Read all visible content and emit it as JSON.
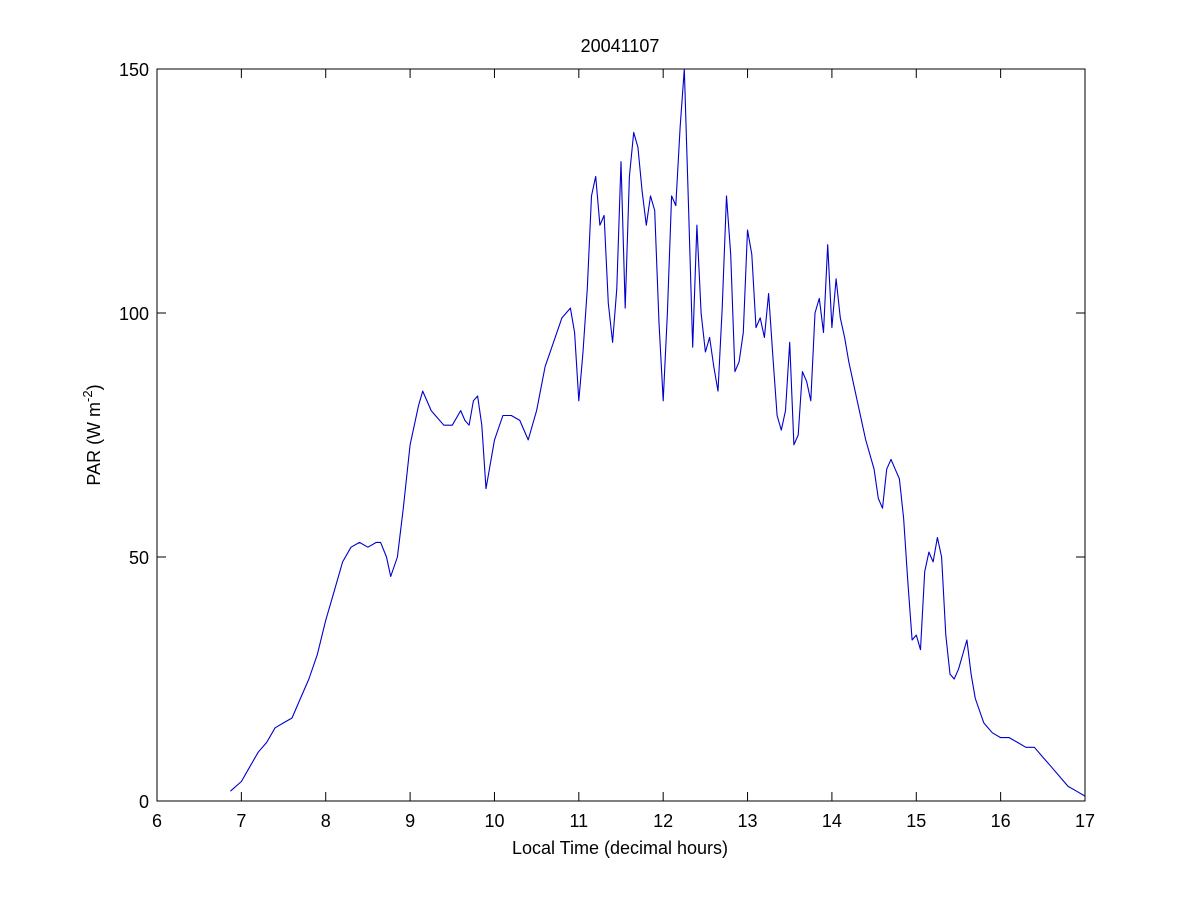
{
  "chart_data": {
    "type": "line",
    "title": "20041107",
    "xlabel": "Local Time (decimal hours)",
    "ylabel": "PAR (W m",
    "ylabel_sup": "-2",
    "ylabel_end": ")",
    "xlim": [
      6,
      17
    ],
    "ylim": [
      0,
      150
    ],
    "xticks": [
      6,
      7,
      8,
      9,
      10,
      11,
      12,
      13,
      14,
      15,
      16,
      17
    ],
    "yticks": [
      0,
      50,
      100,
      150
    ],
    "grid": false,
    "series": [
      {
        "color": "#0000cc",
        "x": [
          6.87,
          7.0,
          7.1,
          7.2,
          7.3,
          7.4,
          7.5,
          7.6,
          7.7,
          7.8,
          7.9,
          8.0,
          8.1,
          8.2,
          8.3,
          8.4,
          8.5,
          8.6,
          8.65,
          8.72,
          8.77,
          8.85,
          8.92,
          9.0,
          9.1,
          9.15,
          9.25,
          9.3,
          9.4,
          9.5,
          9.6,
          9.65,
          9.7,
          9.75,
          9.8,
          9.85,
          9.9,
          10.0,
          10.1,
          10.2,
          10.3,
          10.4,
          10.5,
          10.6,
          10.7,
          10.8,
          10.85,
          10.9,
          10.95,
          11.0,
          11.05,
          11.1,
          11.15,
          11.2,
          11.25,
          11.3,
          11.35,
          11.4,
          11.45,
          11.5,
          11.55,
          11.6,
          11.65,
          11.7,
          11.75,
          11.8,
          11.85,
          11.9,
          11.95,
          12.0,
          12.05,
          12.1,
          12.15,
          12.2,
          12.25,
          12.3,
          12.35,
          12.4,
          12.45,
          12.5,
          12.55,
          12.6,
          12.65,
          12.7,
          12.75,
          12.8,
          12.85,
          12.9,
          12.95,
          13.0,
          13.05,
          13.1,
          13.15,
          13.2,
          13.25,
          13.3,
          13.35,
          13.4,
          13.45,
          13.5,
          13.55,
          13.6,
          13.65,
          13.7,
          13.75,
          13.8,
          13.85,
          13.9,
          13.95,
          14.0,
          14.05,
          14.1,
          14.15,
          14.2,
          14.3,
          14.4,
          14.5,
          14.55,
          14.6,
          14.65,
          14.7,
          14.75,
          14.8,
          14.85,
          14.9,
          14.95,
          15.0,
          15.05,
          15.1,
          15.15,
          15.2,
          15.25,
          15.3,
          15.35,
          15.4,
          15.45,
          15.5,
          15.55,
          15.6,
          15.65,
          15.7,
          15.8,
          15.9,
          16.0,
          16.1,
          16.2,
          16.3,
          16.4,
          16.5,
          16.6,
          16.7,
          16.8,
          16.9,
          17.0
        ],
        "y": [
          2,
          4,
          7,
          10,
          12,
          15,
          16,
          17,
          21,
          25,
          30,
          37,
          43,
          49,
          52,
          53,
          52,
          53,
          53,
          50,
          46,
          50,
          60,
          73,
          81,
          84,
          80,
          79,
          77,
          77,
          80,
          78,
          77,
          82,
          83,
          77,
          64,
          74,
          79,
          79,
          78,
          74,
          80,
          89,
          94,
          99,
          100,
          101,
          96,
          82,
          92,
          105,
          124,
          128,
          118,
          120,
          102,
          94,
          105,
          131,
          101,
          128,
          137,
          134,
          125,
          118,
          124,
          121,
          98,
          82,
          100,
          124,
          122,
          138,
          150,
          122,
          93,
          118,
          100,
          92,
          95,
          89,
          84,
          101,
          124,
          112,
          88,
          90,
          96,
          117,
          112,
          97,
          99,
          95,
          104,
          91,
          79,
          76,
          80,
          94,
          73,
          75,
          88,
          86,
          82,
          100,
          103,
          96,
          114,
          97,
          107,
          99,
          95,
          90,
          82,
          74,
          68,
          62,
          60,
          68,
          70,
          68,
          66,
          58,
          45,
          33,
          34,
          31,
          47,
          51,
          49,
          54,
          50,
          34,
          26,
          25,
          27,
          30,
          33,
          26,
          21,
          16,
          14,
          13,
          13,
          12,
          11,
          11,
          9,
          7,
          5,
          3,
          2,
          1
        ]
      }
    ]
  }
}
